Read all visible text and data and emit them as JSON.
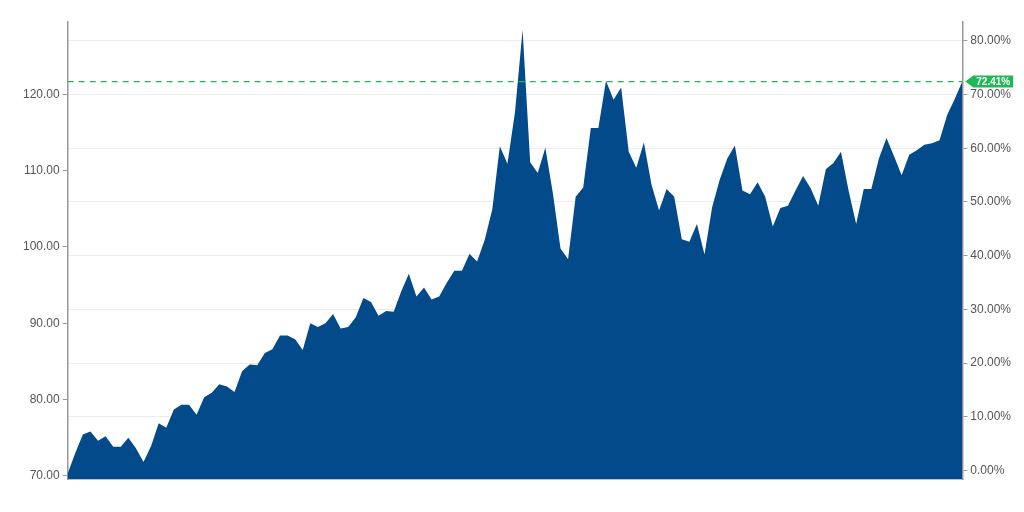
{
  "chart_data": {
    "type": "area",
    "categories": [
      null,
      null,
      null,
      null,
      null,
      null,
      null,
      null,
      null,
      null,
      null,
      null,
      null,
      null,
      null,
      null,
      null,
      null,
      null,
      null,
      null,
      null,
      null,
      null,
      null,
      null,
      null,
      null,
      null,
      null,
      null,
      null,
      null,
      null,
      null,
      null,
      null,
      null,
      null,
      null,
      null,
      null,
      null,
      null,
      null,
      null,
      null,
      null,
      null,
      null,
      null,
      null,
      null,
      null,
      null,
      null,
      null,
      null,
      null,
      null,
      null,
      null,
      null,
      null,
      null,
      null,
      null,
      null,
      null,
      null,
      null,
      null,
      null,
      null,
      null,
      null,
      null,
      null,
      null,
      null,
      null,
      null,
      null,
      null,
      null,
      null,
      null,
      null,
      null,
      null,
      null,
      null,
      null,
      null,
      null,
      null,
      null,
      null,
      null,
      null,
      null,
      null,
      null,
      null,
      null,
      null,
      null,
      null,
      null,
      null,
      null,
      null,
      null,
      null,
      null,
      null,
      null,
      null,
      null
    ],
    "series": [
      {
        "color": "#034a8a",
        "values": [
          70.3,
          73.0,
          75.4,
          75.8,
          74.6,
          75.2,
          73.8,
          73.8,
          75.0,
          73.6,
          71.8,
          73.9,
          76.9,
          76.3,
          78.7,
          79.3,
          79.3,
          78.0,
          80.3,
          80.9,
          82.0,
          81.7,
          81.0,
          83.7,
          84.6,
          84.5,
          86.1,
          86.6,
          88.4,
          88.4,
          87.9,
          86.5,
          90.0,
          89.5,
          90.0,
          91.2,
          89.3,
          89.5,
          90.8,
          93.3,
          92.8,
          91.0,
          91.6,
          91.5,
          94.2,
          96.5,
          93.5,
          94.7,
          93.1,
          93.5,
          95.3,
          96.9,
          96.9,
          99.1,
          98.1,
          100.9,
          104.9,
          113.2,
          110.9,
          117.7,
          128.5,
          111.1,
          109.7,
          113.0,
          107.0,
          99.8,
          98.4,
          106.6,
          107.8,
          115.6,
          115.6,
          121.8,
          119.3,
          120.9,
          112.5,
          110.4,
          113.7,
          108.2,
          104.8,
          107.6,
          106.6,
          101.0,
          100.7,
          103.0,
          99.0,
          105.2,
          108.8,
          111.6,
          113.3,
          107.4,
          106.9,
          108.5,
          106.6,
          102.7,
          105.1,
          105.4,
          107.4,
          109.3,
          107.7,
          105.4,
          110.2,
          111.0,
          112.5,
          107.4,
          103.0,
          107.6,
          107.6,
          111.6,
          114.3,
          111.9,
          109.4,
          112.1,
          112.7,
          113.4,
          113.6,
          114.0,
          117.3,
          119.4,
          121.7
        ]
      }
    ],
    "ylim": [
      69.5,
      129.5
    ],
    "yticks": [
      {
        "value": 70,
        "label": "70.00"
      },
      {
        "value": 80,
        "label": "80.00"
      },
      {
        "value": 90,
        "label": "90.00"
      },
      {
        "value": 100,
        "label": "100.00"
      },
      {
        "value": 110,
        "label": "110.00"
      },
      {
        "value": 120,
        "label": "120.00"
      }
    ],
    "y2lim": [
      -1.7,
      83.5
    ],
    "y2ticks": [
      {
        "value": 0,
        "label": "0.00%"
      },
      {
        "value": 10,
        "label": "10.00%"
      },
      {
        "value": 20,
        "label": "20.00%"
      },
      {
        "value": 30,
        "label": "30.00%"
      },
      {
        "value": 40,
        "label": "40.00%"
      },
      {
        "value": 50,
        "label": "50.00%"
      },
      {
        "value": 60,
        "label": "60.00%"
      },
      {
        "value": 70,
        "label": "70.00%"
      },
      {
        "value": 80,
        "label": "80.00%"
      }
    ],
    "ref_lines": [
      {
        "axis": "y2",
        "value": 72.41,
        "label": "72.41%",
        "color": "#1db954",
        "line_style": "dashed"
      }
    ],
    "grid": "y",
    "legend": false,
    "marker": "none"
  }
}
